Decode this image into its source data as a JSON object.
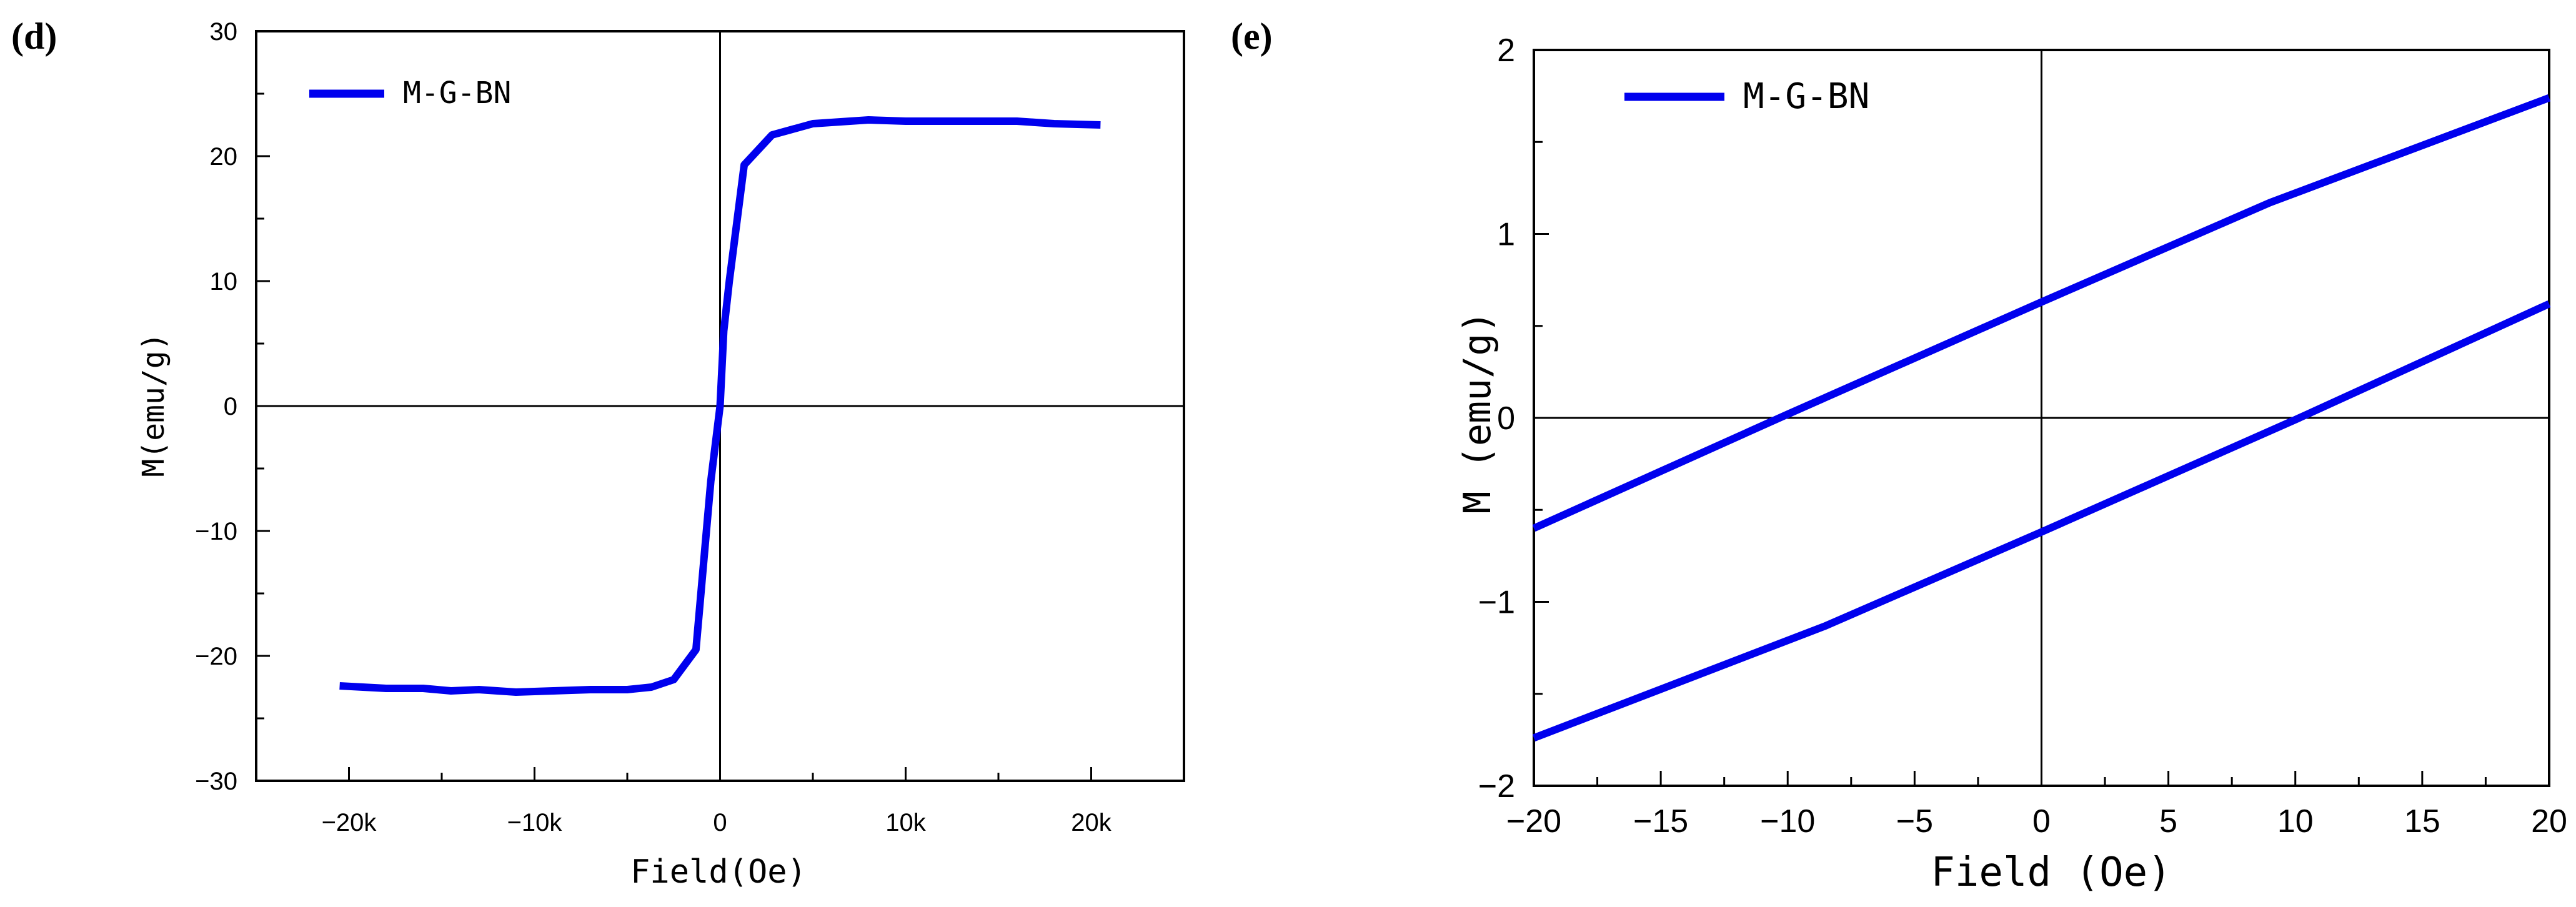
{
  "chart_data": [
    {
      "panel_label": "(d)",
      "type": "line",
      "xlabel": "Field(Oe)",
      "ylabel": "M(emu/g)",
      "xlim": [
        -25000,
        25000
      ],
      "ylim": [
        -30,
        30
      ],
      "x_ticks": [
        {
          "value": -20000,
          "label": "−20k"
        },
        {
          "value": -10000,
          "label": "−10k"
        },
        {
          "value": 0,
          "label": "0"
        },
        {
          "value": 10000,
          "label": "10k"
        },
        {
          "value": 20000,
          "label": "20k"
        }
      ],
      "y_ticks": [
        {
          "value": -30,
          "label": "−30"
        },
        {
          "value": -20,
          "label": "−20"
        },
        {
          "value": -10,
          "label": "−10"
        },
        {
          "value": 0,
          "label": "0"
        },
        {
          "value": 10,
          "label": "10"
        },
        {
          "value": 20,
          "label": "20"
        },
        {
          "value": 30,
          "label": "30"
        }
      ],
      "zero_lines": true,
      "legend_position": "top-left",
      "series": [
        {
          "name": "M-G-BN",
          "color": "#0000ee",
          "x": [
            -20500,
            -18000,
            -16000,
            -14500,
            -13000,
            -11000,
            -9000,
            -7000,
            -5000,
            -3700,
            -2500,
            -1300,
            -500,
            0,
            200,
            500,
            1300,
            2800,
            5000,
            8000,
            10000,
            12000,
            16000,
            18000,
            20500
          ],
          "y": [
            -22.4,
            -22.6,
            -22.6,
            -22.8,
            -22.7,
            -22.9,
            -22.8,
            -22.7,
            -22.7,
            -22.5,
            -21.9,
            -19.5,
            -6,
            0,
            6,
            10,
            19.3,
            21.7,
            22.6,
            22.9,
            22.8,
            22.8,
            22.8,
            22.6,
            22.5
          ]
        }
      ]
    },
    {
      "panel_label": "(e)",
      "type": "line",
      "xlabel": "Field (Oe)",
      "ylabel": "M (emu/g)",
      "xlim": [
        -20,
        20
      ],
      "ylim": [
        -2,
        2
      ],
      "x_ticks": [
        {
          "value": -20,
          "label": "−20"
        },
        {
          "value": -15,
          "label": "−15"
        },
        {
          "value": -10,
          "label": "−10"
        },
        {
          "value": -5,
          "label": "−5"
        },
        {
          "value": 0,
          "label": "0"
        },
        {
          "value": 5,
          "label": "5"
        },
        {
          "value": 10,
          "label": "10"
        },
        {
          "value": 15,
          "label": "15"
        },
        {
          "value": 20,
          "label": "20"
        }
      ],
      "y_ticks": [
        {
          "value": -2,
          "label": "−2"
        },
        {
          "value": -1,
          "label": "−1"
        },
        {
          "value": 0,
          "label": "0"
        },
        {
          "value": 1,
          "label": "1"
        },
        {
          "value": 2,
          "label": "2"
        }
      ],
      "zero_lines": true,
      "legend_position": "top-left",
      "series": [
        {
          "name": "M-G-BN",
          "color": "#0000ee",
          "x": [
            -20,
            -10,
            0,
            9,
            20
          ],
          "y": [
            -0.6,
            0.02,
            0.63,
            1.17,
            1.74
          ]
        },
        {
          "name": "",
          "color": "#0000ee",
          "x": [
            -20,
            -8.5,
            0,
            10,
            20
          ],
          "y": [
            -1.74,
            -1.13,
            -0.62,
            -0.01,
            0.62
          ]
        }
      ]
    }
  ]
}
